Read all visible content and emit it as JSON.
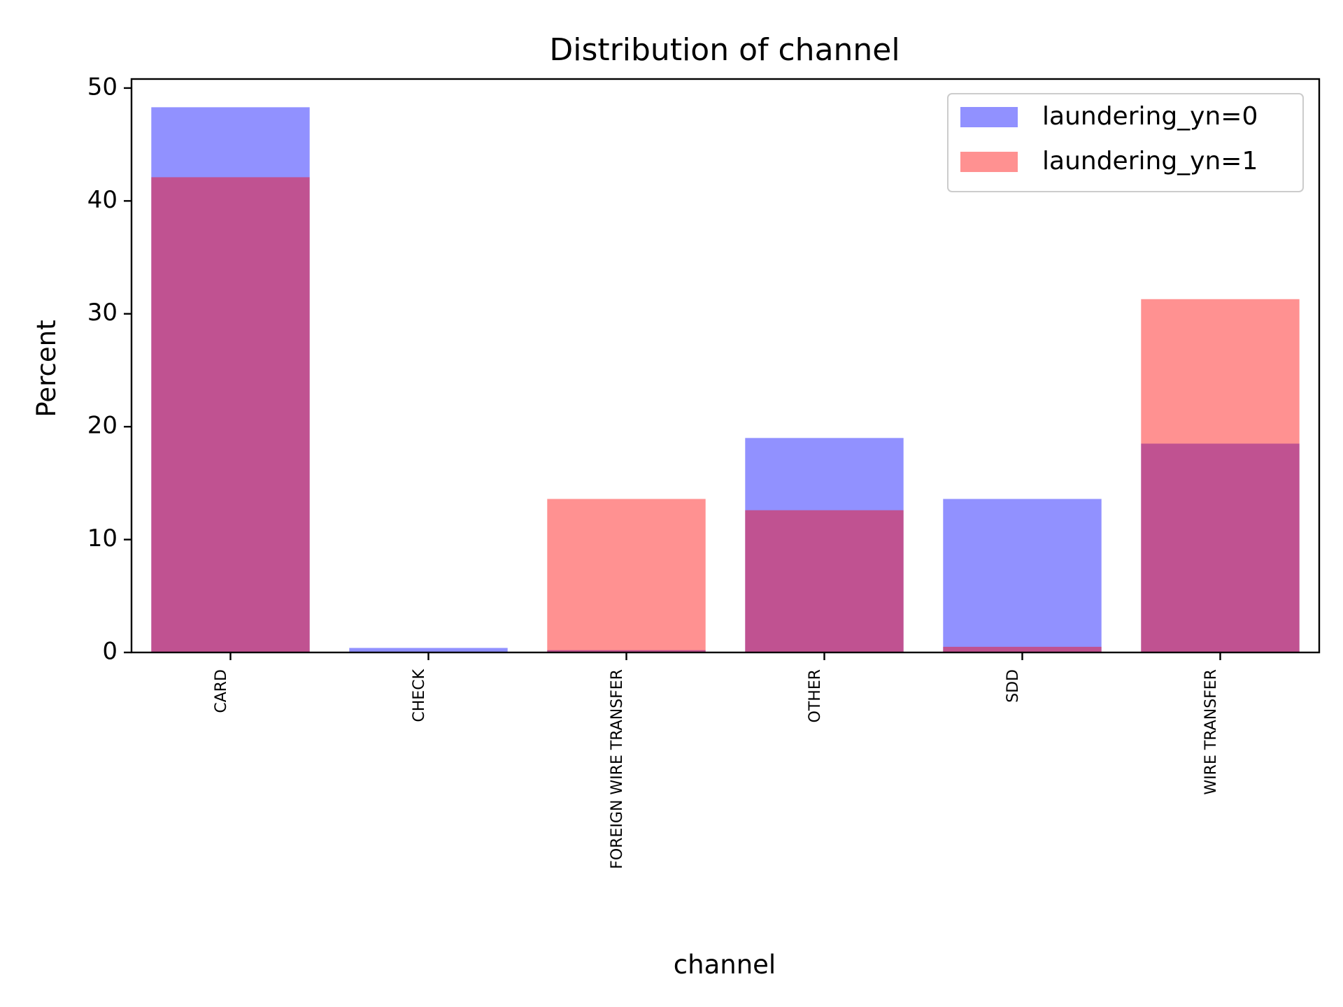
{
  "chart_data": {
    "type": "bar",
    "title": "Distribution of channel",
    "xlabel": "channel",
    "ylabel": "Percent",
    "categories": [
      "CARD",
      "CHECK",
      "FOREIGN WIRE TRANSFER",
      "OTHER",
      "SDD",
      "WIRE TRANSFER"
    ],
    "ylim": [
      0,
      50.8
    ],
    "yticks": [
      0,
      10,
      20,
      30,
      40,
      50
    ],
    "grid": false,
    "legend_position": "top-right",
    "bar_mode": "overlaid",
    "series": [
      {
        "name": "laundering_yn=0",
        "color": "#0000ff",
        "opacity": 0.43,
        "values": [
          48.3,
          0.4,
          0.2,
          19.0,
          13.6,
          18.5
        ]
      },
      {
        "name": "laundering_yn=1",
        "color": "#ff0000",
        "opacity": 0.43,
        "values": [
          42.1,
          0.0,
          13.6,
          12.6,
          0.5,
          31.3
        ]
      }
    ]
  }
}
